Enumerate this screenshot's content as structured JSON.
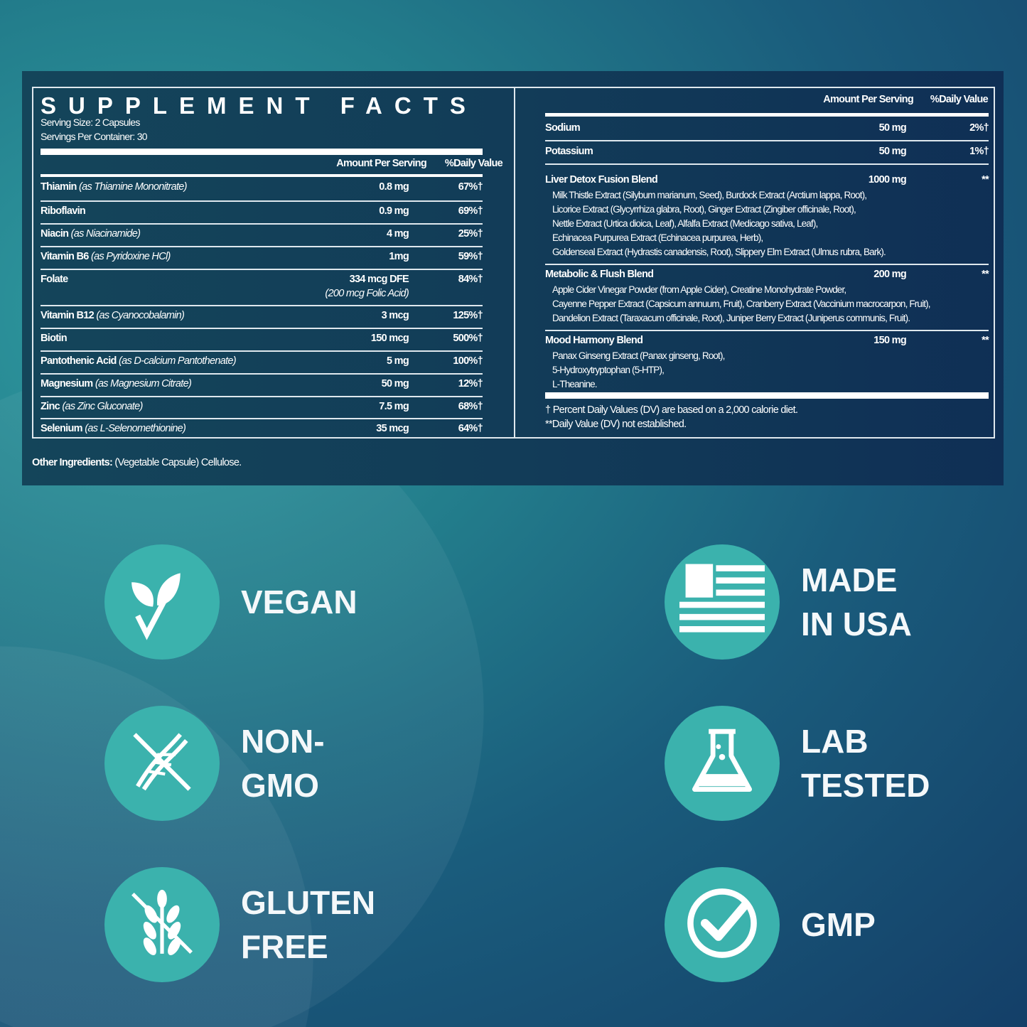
{
  "facts": {
    "title": "SUPPLEMENT FACTS",
    "serving_size": "Serving Size: 2 Capsules",
    "servings_per_container": "Servings Per Container: 30",
    "col_amount": "Amount Per Serving",
    "col_dv": "%Daily Value",
    "nutrients": [
      {
        "name": "Thiamin",
        "qual": "(as Thiamine Mononitrate)",
        "amount": "0.8 mg",
        "dv": "67%†"
      },
      {
        "name": "Riboflavin",
        "qual": "",
        "amount": "0.9 mg",
        "dv": "69%†"
      },
      {
        "name": "Niacin",
        "qual": "(as Niacinamide)",
        "amount": "4 mg",
        "dv": "25%†"
      },
      {
        "name": "Vitamin B6",
        "qual": "(as Pyridoxine HCl)",
        "amount": "1mg",
        "dv": "59%†"
      },
      {
        "name": "Folate",
        "qual": "",
        "amount": "334 mcg DFE",
        "sub": "(200 mcg Folic Acid)",
        "dv": "84%†"
      },
      {
        "name": "Vitamin B12",
        "qual": "(as Cyanocobalamin)",
        "amount": "3 mcg",
        "dv": "125%†"
      },
      {
        "name": "Biotin",
        "qual": "",
        "amount": "150 mcg",
        "dv": "500%†"
      },
      {
        "name": "Pantothenic Acid",
        "qual": "(as D-calcium Pantothenate)",
        "amount": "5 mg",
        "dv": "100%†"
      },
      {
        "name": "Magnesium",
        "qual": "(as Magnesium Citrate)",
        "amount": "50 mg",
        "dv": "12%†"
      },
      {
        "name": "Zinc",
        "qual": "(as Zinc Gluconate)",
        "amount": "7.5 mg",
        "dv": "68%†"
      },
      {
        "name": "Selenium",
        "qual": "(as L-Selenomethionine)",
        "amount": "35 mcg",
        "dv": "64%†"
      }
    ],
    "minerals": [
      {
        "name": "Sodium",
        "amount": "50 mg",
        "dv": "2%†"
      },
      {
        "name": "Potassium",
        "amount": "50 mg",
        "dv": "1%†"
      }
    ],
    "blends": [
      {
        "name": "Liver Detox Fusion Blend",
        "amount": "1000 mg",
        "dv": "**",
        "ingredients": [
          "Milk Thistle Extract (Silybum marianum, Seed), Burdock Extract (Arctium lappa, Root),",
          "Licorice Extract (Glycyrrhiza glabra, Root), Ginger Extract (Zingiber officinale, Root),",
          "Nettle Extract (Urtica dioica, Leaf), Alfalfa Extract (Medicago sativa, Leaf),",
          "Echinacea Purpurea Extract (Echinacea purpurea, Herb),",
          "Goldenseal Extract (Hydrastis canadensis, Root), Slippery Elm Extract (Ulmus rubra, Bark)."
        ]
      },
      {
        "name": "Metabolic & Flush Blend",
        "amount": "200 mg",
        "dv": "**",
        "ingredients": [
          "Apple Cider Vinegar Powder (from Apple Cider), Creatine Monohydrate Powder,",
          "Cayenne Pepper Extract (Capsicum annuum, Fruit), Cranberry Extract (Vaccinium macrocarpon, Fruit),",
          "Dandelion Extract (Taraxacum officinale, Root), Juniper Berry Extract (Juniperus communis, Fruit)."
        ]
      },
      {
        "name": "Mood Harmony Blend",
        "amount": "150 mg",
        "dv": "**",
        "ingredients": [
          "Panax Ginseng Extract (Panax ginseng, Root),",
          "5-Hydroxytryptophan (5-HTP),",
          "L-Theanine."
        ]
      }
    ],
    "footnote1": "† Percent Daily Values (DV) are based on a 2,000 calorie diet.",
    "footnote2": "**Daily Value (DV) not established.",
    "other_label": "Other Ingredients:",
    "other_value": " (Vegetable Capsule) Cellulose."
  },
  "badges": [
    {
      "icon": "leaf-check-icon",
      "lines": [
        "VEGAN"
      ]
    },
    {
      "icon": "dna-crossed-icon",
      "lines": [
        "NON-",
        "GMO"
      ]
    },
    {
      "icon": "wheat-crossed-icon",
      "lines": [
        "GLUTEN",
        "FREE"
      ]
    },
    {
      "icon": "usa-flag-icon",
      "lines": [
        "MADE",
        "IN USA"
      ]
    },
    {
      "icon": "flask-icon",
      "lines": [
        "LAB",
        "TESTED"
      ]
    },
    {
      "icon": "checkmark-circle-icon",
      "lines": [
        "GMP"
      ]
    }
  ],
  "colors": {
    "badge": "#3bb2ad",
    "panel": "#123c58",
    "background": "#1a5c7c"
  }
}
